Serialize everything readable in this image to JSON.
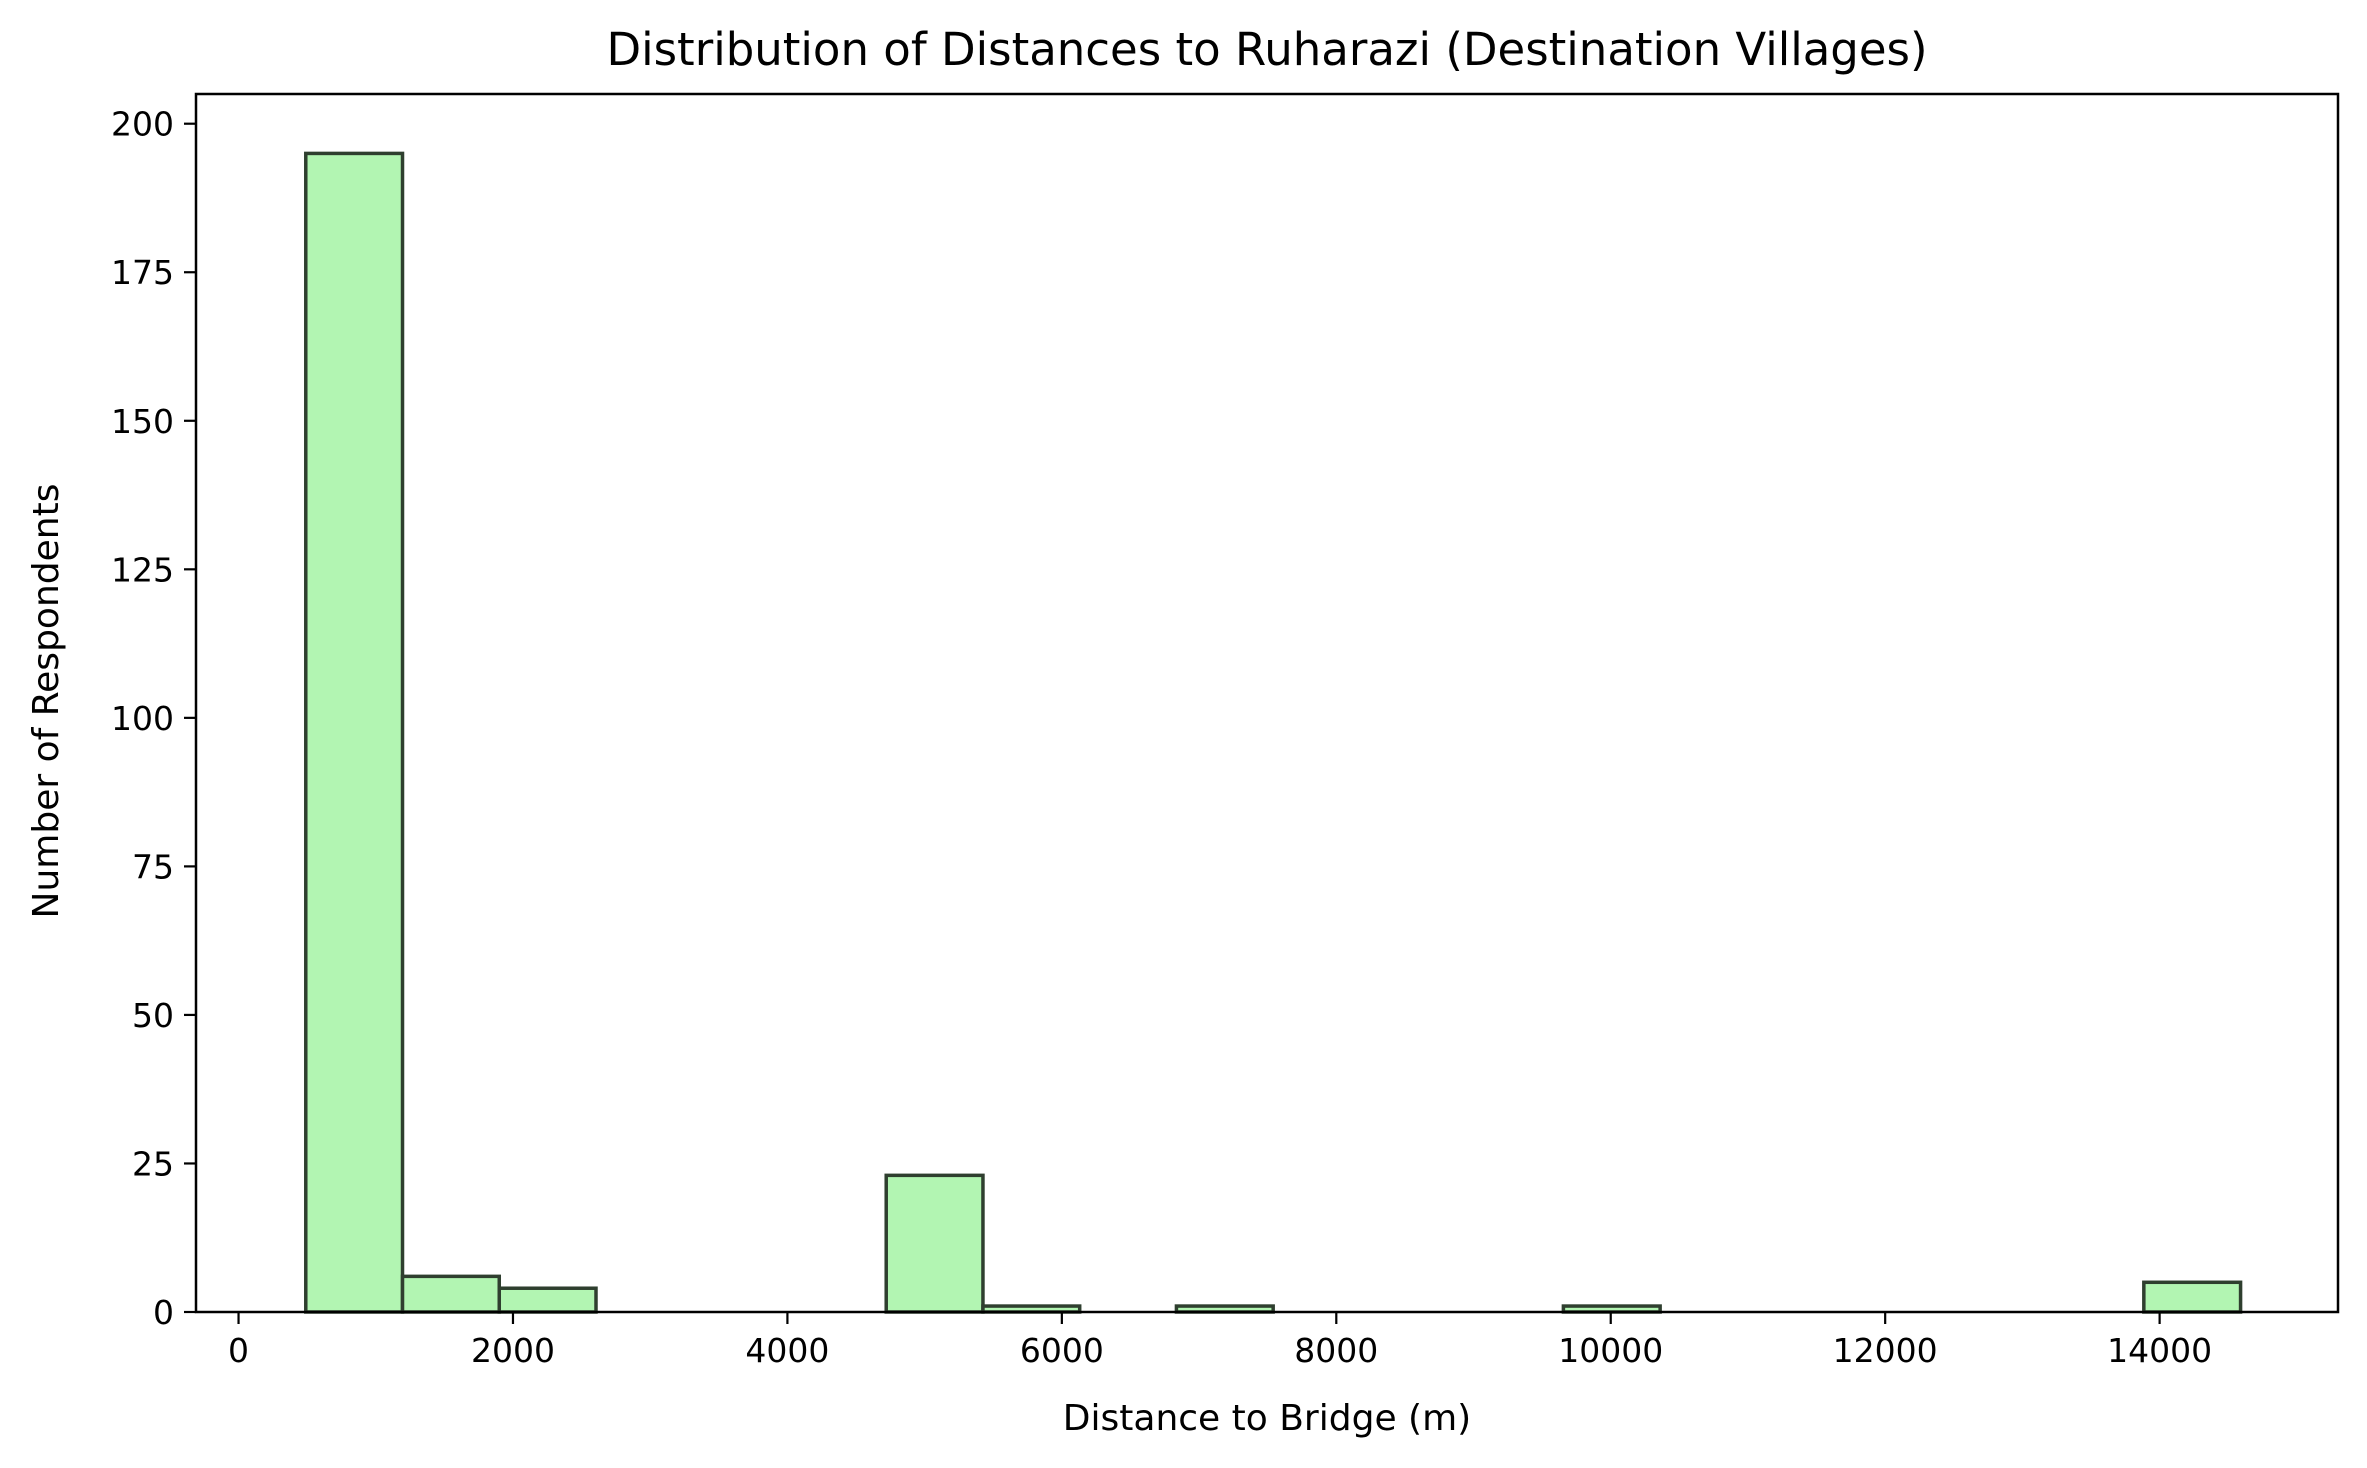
{
  "chart_data": {
    "type": "bar",
    "title": "Distribution of Distances to Ruharazi (Destination Villages)",
    "xlabel": "Distance to Bridge (m)",
    "ylabel": "Number of Respondents",
    "xlim": [
      -310,
      15300
    ],
    "ylim": [
      0,
      205
    ],
    "xticks": [
      0,
      2000,
      4000,
      6000,
      8000,
      10000,
      12000,
      14000
    ],
    "yticks": [
      0,
      25,
      50,
      75,
      100,
      125,
      150,
      175,
      200
    ],
    "bin_width": 705,
    "bars": [
      {
        "x0": 490,
        "x1": 1195,
        "count": 195
      },
      {
        "x0": 1195,
        "x1": 1900,
        "count": 6
      },
      {
        "x0": 1900,
        "x1": 2605,
        "count": 4
      },
      {
        "x0": 2605,
        "x1": 3310,
        "count": 0
      },
      {
        "x0": 3310,
        "x1": 4015,
        "count": 0
      },
      {
        "x0": 4015,
        "x1": 4720,
        "count": 0
      },
      {
        "x0": 4720,
        "x1": 5425,
        "count": 23
      },
      {
        "x0": 5425,
        "x1": 6130,
        "count": 1
      },
      {
        "x0": 6130,
        "x1": 6835,
        "count": 0
      },
      {
        "x0": 6835,
        "x1": 7540,
        "count": 1
      },
      {
        "x0": 7540,
        "x1": 8245,
        "count": 0
      },
      {
        "x0": 8245,
        "x1": 8950,
        "count": 0
      },
      {
        "x0": 8950,
        "x1": 9655,
        "count": 0
      },
      {
        "x0": 9655,
        "x1": 10360,
        "count": 1
      },
      {
        "x0": 10360,
        "x1": 11065,
        "count": 0
      },
      {
        "x0": 11065,
        "x1": 11770,
        "count": 0
      },
      {
        "x0": 11770,
        "x1": 12475,
        "count": 0
      },
      {
        "x0": 12475,
        "x1": 13180,
        "count": 0
      },
      {
        "x0": 13180,
        "x1": 13885,
        "count": 0
      },
      {
        "x0": 13885,
        "x1": 14590,
        "count": 5
      }
    ],
    "bar_color": "#b2f5b2",
    "edge_color": "#2f3f2f",
    "grid": false,
    "legend": "none"
  }
}
